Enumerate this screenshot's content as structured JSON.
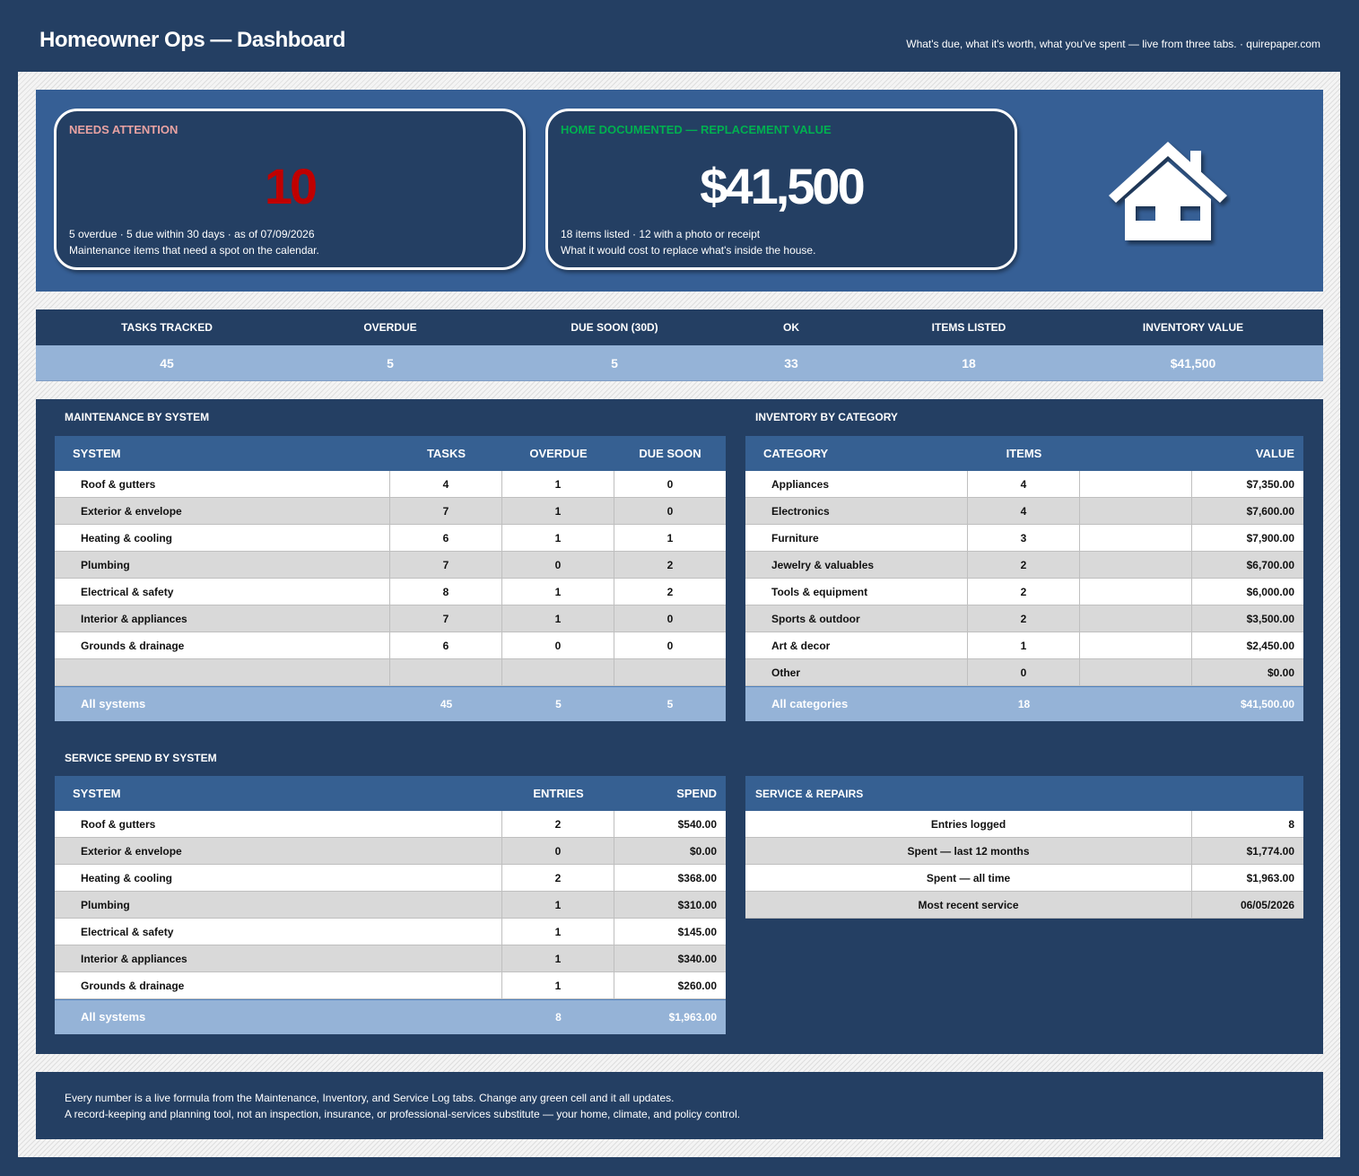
{
  "header": {
    "title": "Homeowner Ops — Dashboard",
    "tagline": "What's due, what it's worth, what you've spent — live from three tabs. · quirepaper.com"
  },
  "cards": [
    {
      "label": "NEEDS ATTENTION",
      "value": "10",
      "detail": "5 overdue · 5 due within 30 days · as of 07/09/2026",
      "note": "Maintenance items that need a spot on the calendar."
    },
    {
      "label": "HOME DOCUMENTED — REPLACEMENT VALUE",
      "value": "$41,500",
      "detail": "18 items listed · 12 with a photo or receipt",
      "note": "What it would cost to replace what's inside the house."
    }
  ],
  "kpis": {
    "labels": [
      "TASKS TRACKED",
      "OVERDUE",
      "DUE SOON (30D)",
      "OK",
      "ITEMS LISTED",
      "INVENTORY VALUE"
    ],
    "values": [
      "45",
      "5",
      "5",
      "33",
      "18",
      "$41,500"
    ]
  },
  "maintenance": {
    "title": "MAINTENANCE BY SYSTEM",
    "columns": [
      "SYSTEM",
      "TASKS",
      "OVERDUE",
      "DUE SOON"
    ],
    "rows": [
      [
        "Roof & gutters",
        "4",
        "1",
        "0"
      ],
      [
        "Exterior & envelope",
        "7",
        "1",
        "0"
      ],
      [
        "Heating & cooling",
        "6",
        "1",
        "1"
      ],
      [
        "Plumbing",
        "7",
        "0",
        "2"
      ],
      [
        "Electrical & safety",
        "8",
        "1",
        "2"
      ],
      [
        "Interior & appliances",
        "7",
        "1",
        "0"
      ],
      [
        "Grounds & drainage",
        "6",
        "0",
        "0"
      ]
    ],
    "total": [
      "All systems",
      "45",
      "5",
      "5"
    ]
  },
  "inventory": {
    "title": "INVENTORY BY CATEGORY",
    "columns": [
      "CATEGORY",
      "ITEMS",
      "VALUE"
    ],
    "rows": [
      [
        "Appliances",
        "4",
        "$7,350.00"
      ],
      [
        "Electronics",
        "4",
        "$7,600.00"
      ],
      [
        "Furniture",
        "3",
        "$7,900.00"
      ],
      [
        "Jewelry & valuables",
        "2",
        "$6,700.00"
      ],
      [
        "Tools & equipment",
        "2",
        "$6,000.00"
      ],
      [
        "Sports & outdoor",
        "2",
        "$3,500.00"
      ],
      [
        "Art & decor",
        "1",
        "$2,450.00"
      ],
      [
        "Other",
        "0",
        "$0.00"
      ]
    ],
    "total": [
      "All categories",
      "18",
      "$41,500.00"
    ]
  },
  "spend": {
    "title": "SERVICE SPEND BY SYSTEM",
    "columns": [
      "SYSTEM",
      "ENTRIES",
      "SPEND"
    ],
    "rows": [
      [
        "Roof & gutters",
        "2",
        "$540.00"
      ],
      [
        "Exterior & envelope",
        "0",
        "$0.00"
      ],
      [
        "Heating & cooling",
        "2",
        "$368.00"
      ],
      [
        "Plumbing",
        "1",
        "$310.00"
      ],
      [
        "Electrical & safety",
        "1",
        "$145.00"
      ],
      [
        "Interior & appliances",
        "1",
        "$340.00"
      ],
      [
        "Grounds & drainage",
        "1",
        "$260.00"
      ]
    ],
    "total": [
      "All systems",
      "8",
      "$1,963.00"
    ]
  },
  "service": {
    "title": "SERVICE & REPAIRS",
    "rows": [
      [
        "Entries logged",
        "8"
      ],
      [
        "Spent — last 12 months",
        "$1,774.00"
      ],
      [
        "Spent — all time",
        "$1,963.00"
      ],
      [
        "Most recent service",
        "06/05/2026"
      ]
    ]
  },
  "footer": [
    "Every number is a live formula from the Maintenance, Inventory, and Service Log tabs. Change any green cell and it all updates.",
    "A record-keeping and planning tool, not an inspection, insurance, or professional-services substitute — your home, climate, and policy control."
  ]
}
